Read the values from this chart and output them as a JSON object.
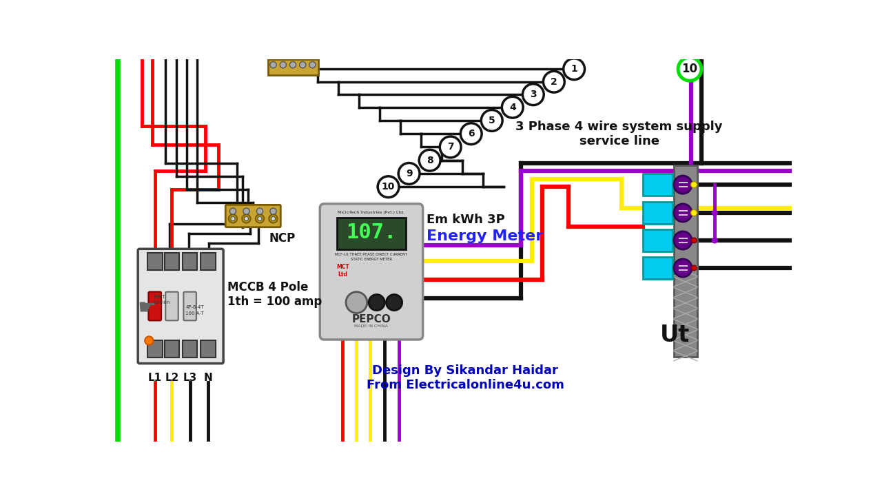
{
  "bg": "#ffffff",
  "green": "#00dd00",
  "red": "#ff0000",
  "black": "#111111",
  "yellow": "#ffee00",
  "purple": "#9900cc",
  "cyan": "#00ccee",
  "gold": "#C8A432",
  "labels": {
    "ncp": "NCP",
    "mccb": "MCCB 4 Pole\n1th = 100 amp",
    "em_top": "Em kWh 3P",
    "em_label": "Energy Meter",
    "service": "3 Phase 4 wire system supply\nservice line",
    "ut": "Ut",
    "design": "Design By Sikandar Haidar\nFrom Electricalonline4u.com",
    "L1": "L1",
    "L2": "L2",
    "L3": "L3",
    "N": "N",
    "pepco": "PEPCO",
    "lcd": "107.",
    "made": "MADE IN CHINA",
    "microtech": "MicroTech Industries (Pvt.) Ltd.",
    "mcf": "MCF-16 THREE PHASE DIRECT CURRENT",
    "static": "STATIC ENERGY METER",
    "mct": "MCT\nLtd"
  },
  "circles": [
    [
      870,
      18,
      1
    ],
    [
      832,
      42,
      2
    ],
    [
      793,
      66,
      3
    ],
    [
      754,
      90,
      4
    ],
    [
      715,
      115,
      5
    ],
    [
      676,
      140,
      6
    ],
    [
      637,
      165,
      7
    ],
    [
      598,
      190,
      8
    ],
    [
      559,
      215,
      9
    ],
    [
      520,
      240,
      10
    ]
  ],
  "green_circle": [
    1088,
    18,
    10
  ],
  "wire_lw": 3.5,
  "thin_lw": 2.5,
  "service_lw": 4.5
}
